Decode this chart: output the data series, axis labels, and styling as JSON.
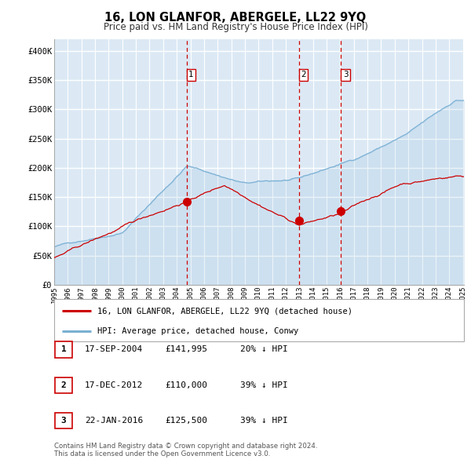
{
  "title": "16, LON GLANFOR, ABERGELE, LL22 9YQ",
  "subtitle": "Price paid vs. HM Land Registry's House Price Index (HPI)",
  "background_color": "#dce9f5",
  "grid_color": "#ffffff",
  "ylim": [
    0,
    420000
  ],
  "yticks": [
    0,
    50000,
    100000,
    150000,
    200000,
    250000,
    300000,
    350000,
    400000
  ],
  "ytick_labels": [
    "£0",
    "£50K",
    "£100K",
    "£150K",
    "£200K",
    "£250K",
    "£300K",
    "£350K",
    "£400K"
  ],
  "sale_dates": [
    "2004-09-17",
    "2012-12-17",
    "2016-01-22"
  ],
  "sale_prices": [
    141995,
    110000,
    125500
  ],
  "sale_labels": [
    "1",
    "2",
    "3"
  ],
  "vline_color": "#cc0000",
  "sale_marker_color": "#cc0000",
  "hpi_line_color": "#7ab0d4",
  "price_line_color": "#cc0000",
  "legend_entries": [
    "16, LON GLANFOR, ABERGELE, LL22 9YQ (detached house)",
    "HPI: Average price, detached house, Conwy"
  ],
  "table_rows": [
    [
      "1",
      "17-SEP-2004",
      "£141,995",
      "20% ↓ HPI"
    ],
    [
      "2",
      "17-DEC-2012",
      "£110,000",
      "39% ↓ HPI"
    ],
    [
      "3",
      "22-JAN-2016",
      "£125,500",
      "39% ↓ HPI"
    ]
  ],
  "footer": "Contains HM Land Registry data © Crown copyright and database right 2024.\nThis data is licensed under the Open Government Licence v3.0.",
  "start_year": 1995,
  "end_year": 2025
}
